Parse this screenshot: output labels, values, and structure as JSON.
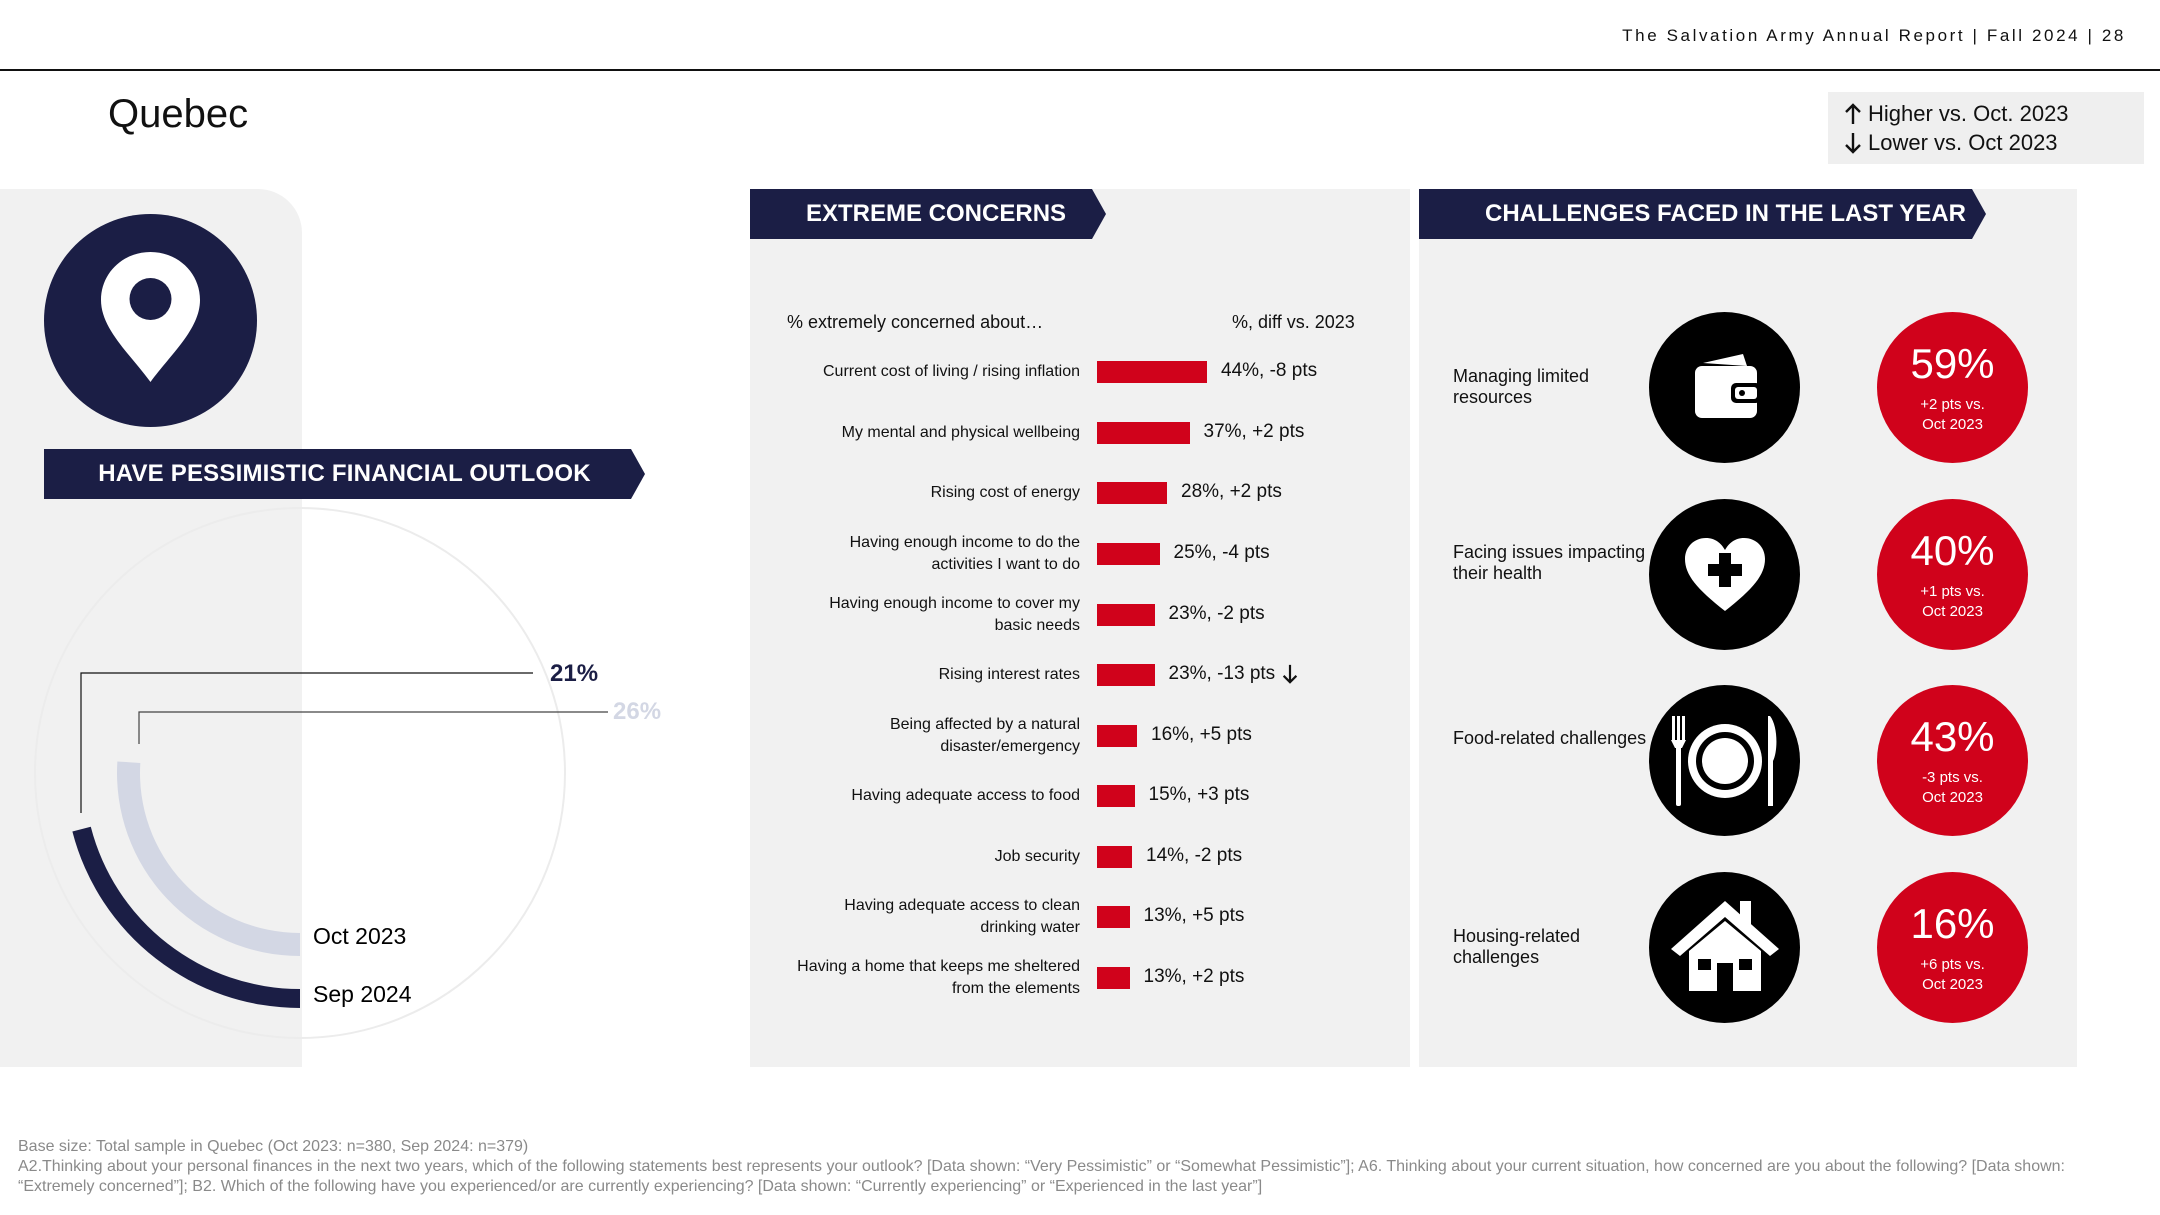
{
  "header": {
    "report": "The Salvation Army Annual Report | Fall 2024 | 28"
  },
  "page_title": "Quebec",
  "legend": {
    "higher": "Higher vs. Oct. 2023",
    "lower": "Lower vs. Oct 2023"
  },
  "left": {
    "banner": "HAVE PESSIMISTIC FINANCIAL OUTLOOK",
    "icon": "location-pin-icon",
    "series": [
      {
        "period": "Sep 2024",
        "pct_label": "21%",
        "value": 21,
        "color": "#1b1e45"
      },
      {
        "period": "Oct 2023",
        "pct_label": "26%",
        "value": 26,
        "color": "#d3d7e4"
      }
    ]
  },
  "middle": {
    "banner": "EXTREME CONCERNS",
    "col_left": "% extremely concerned about…",
    "col_right": "%, diff vs. 2023"
  },
  "right": {
    "banner": "CHALLENGES FACED IN THE LAST YEAR",
    "items": [
      {
        "label": "Managing limited resources",
        "icon": "wallet-icon",
        "pct": "59%",
        "sub1": "+2 pts vs.",
        "sub2": "Oct 2023"
      },
      {
        "label": "Facing issues impacting their health",
        "icon": "heart-plus-icon",
        "pct": "40%",
        "sub1": "+1 pts vs.",
        "sub2": "Oct 2023"
      },
      {
        "label": "Food-related challenges",
        "icon": "plate-cutlery-icon",
        "pct": "43%",
        "sub1": "-3 pts vs.",
        "sub2": "Oct 2023"
      },
      {
        "label": "Housing-related challenges",
        "icon": "house-icon",
        "pct": "16%",
        "sub1": "+6 pts vs.",
        "sub2": "Oct 2023"
      }
    ]
  },
  "colors": {
    "navy": "#1b1e45",
    "red": "#d0021b",
    "light": "#d3d7e4",
    "panel": "#f1f1f1"
  },
  "chart_data": [
    {
      "type": "bar",
      "orientation": "horizontal",
      "title": "EXTREME CONCERNS",
      "categories": [
        "Current cost of living / rising inflation",
        "My mental and physical wellbeing",
        "Rising cost of energy",
        "Having enough income to do the activities I want to do",
        "Having enough income to cover my basic needs",
        "Rising interest rates",
        "Being affected by a natural disaster/emergency",
        "Having adequate access to food",
        "Job security",
        "Having adequate access to clean drinking water",
        "Having a home that keeps me sheltered from the elements"
      ],
      "label_lines": [
        [
          "Current cost of living / rising inflation"
        ],
        [
          "My mental and physical wellbeing"
        ],
        [
          "Rising cost of energy"
        ],
        [
          "Having enough income to do the",
          "activities I want to do"
        ],
        [
          "Having enough income to cover my",
          "basic needs"
        ],
        [
          "Rising interest rates"
        ],
        [
          "Being affected by a natural",
          "disaster/emergency"
        ],
        [
          "Having adequate access to food"
        ],
        [
          "Job security"
        ],
        [
          "Having adequate access to clean",
          "drinking water"
        ],
        [
          "Having a home that keeps me sheltered",
          "from the elements"
        ]
      ],
      "values": [
        44,
        37,
        28,
        25,
        23,
        23,
        16,
        15,
        14,
        13,
        13
      ],
      "diff": [
        -8,
        2,
        2,
        -4,
        -2,
        -13,
        5,
        3,
        -2,
        5,
        2
      ],
      "value_labels": [
        "44%, -8 pts",
        "37%, +2 pts",
        "28%, +2 pts",
        "25%, -4 pts",
        "23%, -2 pts",
        "23%, -13 pts",
        "16%, +5 pts",
        "15%, +3 pts",
        "14%, -2 pts",
        "13%, +5 pts",
        "13%, +2 pts"
      ],
      "significance": [
        "",
        "",
        "",
        "",
        "",
        "lower",
        "",
        "",
        "",
        "",
        ""
      ],
      "bar_color": "#d0021b"
    },
    {
      "type": "pie",
      "title": "HAVE PESSIMISTIC FINANCIAL OUTLOOK",
      "categories": [
        "Sep 2024",
        "Oct 2023"
      ],
      "values": [
        21,
        26
      ]
    }
  ],
  "footer": {
    "line1": "Base size: Total sample in Quebec (Oct 2023: n=380, Sep 2024: n=379)",
    "line2": "A2.Thinking about your personal finances in the next two years, which of the following statements best represents your outlook? [Data shown: “Very Pessimistic” or “Somewhat Pessimistic”]; A6. Thinking about your current situation, how concerned are you about the following? [Data shown: “Extremely concerned”]; B2. Which of the following have you experienced/or are currently experiencing? [Data shown: “Currently experiencing” or “Experienced in the last year”]"
  }
}
